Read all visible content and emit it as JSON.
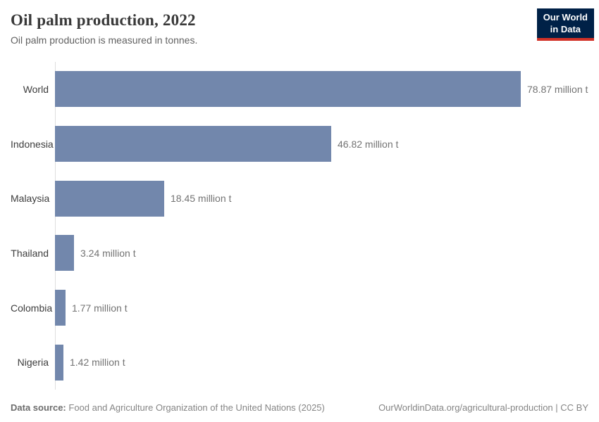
{
  "header": {
    "title": "Oil palm production, 2022",
    "subtitle": "Oil palm production is measured in tonnes.",
    "logo": {
      "line1": "Our World",
      "line2": "in Data",
      "bg_color": "#002147",
      "stripe_color": "#d13127"
    }
  },
  "chart_data": {
    "type": "bar",
    "orientation": "horizontal",
    "title": "Oil palm production, 2022",
    "subtitle": "Oil palm production is measured in tonnes.",
    "unit": "million t",
    "categories": [
      "World",
      "Indonesia",
      "Malaysia",
      "Thailand",
      "Colombia",
      "Nigeria"
    ],
    "values": [
      78.87,
      46.82,
      18.45,
      3.24,
      1.77,
      1.42
    ],
    "value_labels": [
      "78.87 million t",
      "46.82 million t",
      "18.45 million t",
      "3.24 million t",
      "1.77 million t",
      "1.42 million t"
    ],
    "xlim": [
      0,
      78.87
    ],
    "grid": false,
    "legend": "none",
    "bar_color": "#7287ac",
    "axis_line_color": "#dedede"
  },
  "footer": {
    "source_label": "Data source:",
    "source_text": "Food and Agriculture Organization of the United Nations (2025)",
    "right_text": "OurWorldinData.org/agricultural-production | CC BY"
  }
}
